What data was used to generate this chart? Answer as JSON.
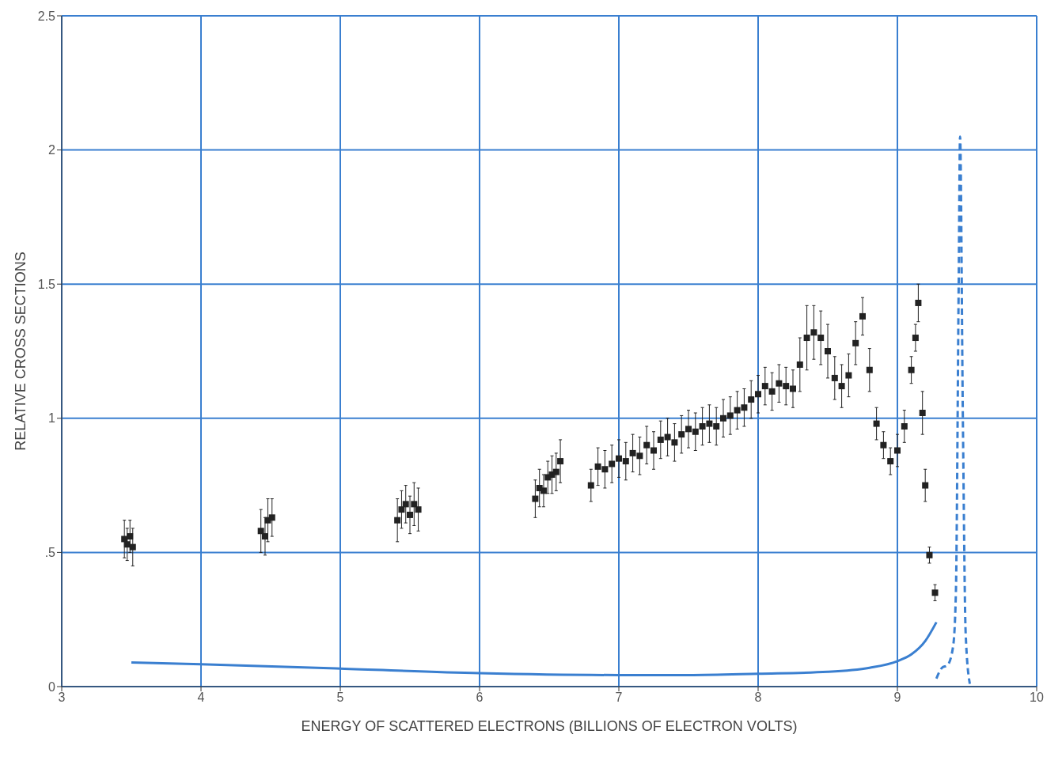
{
  "chart_data": {
    "type": "scatter",
    "xlabel": "ENERGY OF SCATTERED ELECTRONS (BILLIONS OF ELECTRON VOLTS)",
    "ylabel": "RELATIVE CROSS SECTIONS",
    "xlim": [
      3,
      10
    ],
    "xticks": [
      3,
      4,
      5,
      6,
      7,
      8,
      9,
      10
    ],
    "ylim": [
      0,
      2.5
    ],
    "yticks": [
      0,
      {
        "value": 0.5,
        "label": ".5"
      },
      1,
      1.5,
      2,
      2.5
    ],
    "grid": true,
    "series": [
      {
        "marker": "square",
        "color": "#222222",
        "x": [
          3.45,
          3.47,
          3.49,
          3.51,
          4.43,
          4.46,
          4.48,
          4.51,
          5.41,
          5.44,
          5.47,
          5.5,
          5.53,
          5.56,
          6.4,
          6.43,
          6.46,
          6.49,
          6.52,
          6.55,
          6.58,
          6.8,
          6.85,
          6.9,
          6.95,
          7.0,
          7.05,
          7.1,
          7.15,
          7.2,
          7.25,
          7.3,
          7.35,
          7.4,
          7.45,
          7.5,
          7.55,
          7.6,
          7.65,
          7.7,
          7.75,
          7.8,
          7.85,
          7.9,
          7.95,
          8.0,
          8.05,
          8.1,
          8.15,
          8.2,
          8.25,
          8.3,
          8.35,
          8.4,
          8.45,
          8.5,
          8.55,
          8.6,
          8.65,
          8.7,
          8.75,
          8.8,
          8.85,
          8.9,
          8.95,
          9.0,
          9.05,
          9.1,
          9.13,
          9.15,
          9.18,
          9.2,
          9.23,
          9.27
        ],
        "values": [
          0.55,
          0.53,
          0.56,
          0.52,
          0.58,
          0.56,
          0.62,
          0.63,
          0.62,
          0.66,
          0.68,
          0.64,
          0.68,
          0.66,
          0.7,
          0.74,
          0.73,
          0.78,
          0.79,
          0.8,
          0.84,
          0.75,
          0.82,
          0.81,
          0.83,
          0.85,
          0.84,
          0.87,
          0.86,
          0.9,
          0.88,
          0.92,
          0.93,
          0.91,
          0.94,
          0.96,
          0.95,
          0.97,
          0.98,
          0.97,
          1.0,
          1.01,
          1.03,
          1.04,
          1.07,
          1.09,
          1.12,
          1.1,
          1.13,
          1.12,
          1.11,
          1.2,
          1.3,
          1.32,
          1.3,
          1.25,
          1.15,
          1.12,
          1.16,
          1.28,
          1.38,
          1.18,
          0.98,
          0.9,
          0.84,
          0.88,
          0.97,
          1.18,
          1.3,
          1.43,
          1.02,
          0.75,
          0.49,
          0.35
        ],
        "errors": [
          0.07,
          0.06,
          0.06,
          0.07,
          0.08,
          0.07,
          0.08,
          0.07,
          0.08,
          0.07,
          0.07,
          0.07,
          0.08,
          0.08,
          0.07,
          0.07,
          0.06,
          0.06,
          0.07,
          0.07,
          0.08,
          0.06,
          0.07,
          0.07,
          0.07,
          0.07,
          0.07,
          0.07,
          0.07,
          0.07,
          0.07,
          0.07,
          0.07,
          0.07,
          0.07,
          0.07,
          0.07,
          0.07,
          0.07,
          0.07,
          0.07,
          0.07,
          0.07,
          0.07,
          0.07,
          0.07,
          0.07,
          0.07,
          0.07,
          0.07,
          0.07,
          0.1,
          0.12,
          0.1,
          0.1,
          0.1,
          0.08,
          0.08,
          0.08,
          0.08,
          0.07,
          0.08,
          0.06,
          0.05,
          0.05,
          0.06,
          0.06,
          0.05,
          0.05,
          0.07,
          0.08,
          0.06,
          0.03,
          0.03
        ]
      },
      {
        "type": "line",
        "color": "#3a7fd0",
        "line_style": "solid",
        "x": [
          3.5,
          4,
          5,
          6,
          7,
          7.5,
          8,
          8.5,
          8.8,
          9,
          9.1,
          9.2,
          9.28
        ],
        "values": [
          0.09,
          0.083,
          0.067,
          0.05,
          0.043,
          0.043,
          0.048,
          0.055,
          0.07,
          0.095,
          0.12,
          0.17,
          0.24
        ]
      },
      {
        "type": "line",
        "color": "#3a7fd0",
        "line_style": "dashed",
        "x": [
          9.28,
          9.32,
          9.36,
          9.4,
          9.42,
          9.44,
          9.45,
          9.47,
          9.49,
          9.52
        ],
        "values": [
          0.03,
          0.07,
          0.08,
          0.15,
          0.35,
          1.5,
          2.05,
          1.0,
          0.2,
          0.01
        ]
      }
    ]
  }
}
